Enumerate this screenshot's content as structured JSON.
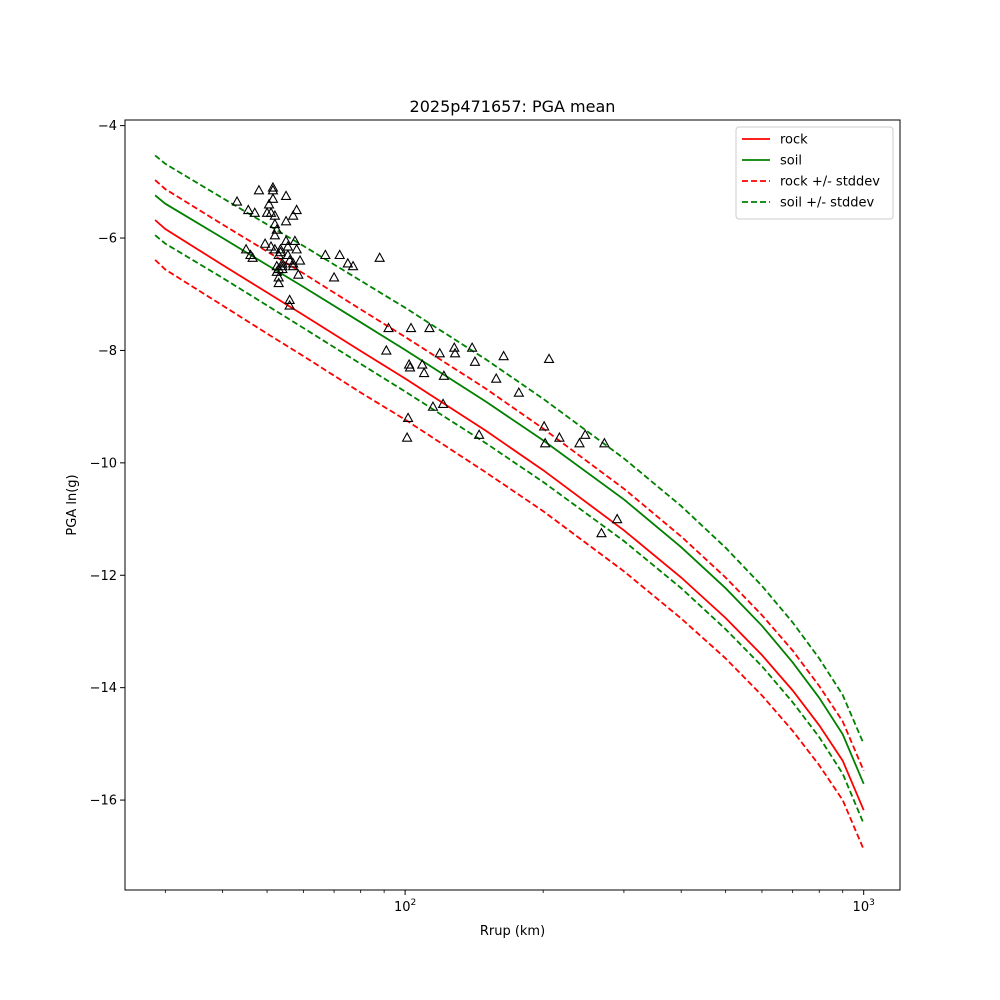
{
  "chart_data": {
    "type": "line",
    "title": "2025p471657: PGA mean",
    "xlabel": "Rrup (km)",
    "ylabel": "PGA ln(g)",
    "x_scale": "log",
    "xlim": [
      24.5,
      1200
    ],
    "ylim": [
      -17.6,
      -3.9
    ],
    "x_ticks": [
      {
        "value": 100,
        "base": "10",
        "exp": "2"
      },
      {
        "value": 1000,
        "base": "10",
        "exp": "3"
      }
    ],
    "x_minor_ticks": [
      30,
      40,
      50,
      60,
      70,
      80,
      90,
      200,
      300,
      400,
      500,
      600,
      700,
      800,
      900
    ],
    "y_ticks": [
      -16,
      -14,
      -12,
      -10,
      -8,
      -6,
      -4
    ],
    "grid": false,
    "legend_position": "top-right",
    "series": [
      {
        "name": "rock",
        "color": "#ff0000",
        "dash": "solid",
        "x": [
          28.5,
          30,
          40,
          50,
          60,
          80,
          100,
          150,
          200,
          300,
          400,
          500,
          600,
          700,
          800,
          900,
          1000
        ],
        "y": [
          -5.68,
          -5.84,
          -6.48,
          -6.97,
          -7.37,
          -8.01,
          -8.5,
          -9.43,
          -10.13,
          -11.2,
          -12.04,
          -12.76,
          -13.42,
          -14.05,
          -14.67,
          -15.3,
          -16.18
        ]
      },
      {
        "name": "soil",
        "color": "#008000",
        "dash": "solid",
        "x": [
          28.5,
          30,
          40,
          50,
          60,
          80,
          100,
          150,
          200,
          300,
          400,
          500,
          600,
          700,
          800,
          900,
          1000
        ],
        "y": [
          -5.24,
          -5.39,
          -6.0,
          -6.48,
          -6.87,
          -7.5,
          -7.99,
          -8.91,
          -9.6,
          -10.65,
          -11.5,
          -12.23,
          -12.9,
          -13.55,
          -14.18,
          -14.83,
          -15.71
        ]
      },
      {
        "name": "rock +/- stddev",
        "color": "#ff0000",
        "dash": "dashed",
        "x": [
          28.5,
          30,
          40,
          50,
          60,
          80,
          100,
          150,
          200,
          300,
          400,
          500,
          600,
          700,
          800,
          900,
          1000
        ],
        "y": [
          -4.97,
          -5.13,
          -5.76,
          -6.24,
          -6.63,
          -7.27,
          -7.76,
          -8.68,
          -9.39,
          -10.46,
          -11.31,
          -12.04,
          -12.71,
          -13.34,
          -13.97,
          -14.6,
          -15.48
        ]
      },
      {
        "name": "rock +/- stddev",
        "color": "#ff0000",
        "dash": "dashed",
        "x": [
          28.5,
          30,
          40,
          50,
          60,
          80,
          100,
          150,
          200,
          300,
          400,
          500,
          600,
          700,
          800,
          900,
          1000
        ],
        "y": [
          -6.39,
          -6.56,
          -7.2,
          -7.7,
          -8.1,
          -8.75,
          -9.23,
          -10.17,
          -10.86,
          -11.93,
          -12.77,
          -13.48,
          -14.14,
          -14.77,
          -15.38,
          -16.0,
          -16.88
        ]
      },
      {
        "name": "soil +/- stddev",
        "color": "#008000",
        "dash": "dashed",
        "x": [
          28.5,
          30,
          40,
          50,
          60,
          80,
          100,
          150,
          200,
          300,
          400,
          500,
          600,
          700,
          800,
          900,
          1000
        ],
        "y": [
          -4.53,
          -4.68,
          -5.29,
          -5.76,
          -6.14,
          -6.76,
          -7.24,
          -8.16,
          -8.86,
          -9.92,
          -10.77,
          -11.51,
          -12.19,
          -12.84,
          -13.48,
          -14.13,
          -15.0
        ]
      },
      {
        "name": "soil +/- stddev",
        "color": "#008000",
        "dash": "dashed",
        "x": [
          28.5,
          30,
          40,
          50,
          60,
          80,
          100,
          150,
          200,
          300,
          400,
          500,
          600,
          700,
          800,
          900,
          1000
        ],
        "y": [
          -5.95,
          -6.1,
          -6.71,
          -7.2,
          -7.6,
          -8.24,
          -8.73,
          -9.65,
          -10.34,
          -11.39,
          -12.23,
          -12.96,
          -13.62,
          -14.26,
          -14.88,
          -15.53,
          -16.42
        ]
      }
    ],
    "legend": [
      {
        "label": "rock",
        "color": "#ff0000",
        "dash": "solid"
      },
      {
        "label": "soil",
        "color": "#008000",
        "dash": "solid"
      },
      {
        "label": "rock +/- stddev",
        "color": "#ff0000",
        "dash": "dashed"
      },
      {
        "label": "soil +/- stddev",
        "color": "#008000",
        "dash": "dashed"
      }
    ],
    "observations": {
      "marker": "triangle",
      "color": "#000000",
      "x": [
        43,
        45,
        45.5,
        46,
        46.5,
        47,
        48,
        49.5,
        50,
        50.5,
        51,
        51,
        51.5,
        51.5,
        51.5,
        52,
        52,
        52,
        52,
        52.5,
        52.5,
        52.5,
        53,
        53,
        53,
        53,
        53.5,
        53.5,
        54,
        54,
        54,
        55,
        55,
        55,
        55.5,
        55.5,
        56,
        56,
        56,
        57,
        57,
        57,
        57.5,
        58,
        58,
        58.5,
        59,
        67,
        70,
        72,
        75,
        77,
        88,
        91,
        92,
        101,
        101.5,
        102,
        102.5,
        103,
        109,
        110,
        113,
        115,
        119,
        121,
        121.5,
        128,
        128.5,
        140,
        142,
        145,
        158,
        164,
        177,
        201,
        202,
        206,
        217,
        240,
        247,
        268,
        272,
        290
      ],
      "y": [
        -5.35,
        -6.2,
        -5.5,
        -6.3,
        -6.35,
        -5.55,
        -5.15,
        -6.1,
        -5.55,
        -5.4,
        -5.55,
        -6.15,
        -5.15,
        -5.1,
        -5.3,
        -5.6,
        -5.75,
        -5.95,
        -6.2,
        -6.5,
        -6.6,
        -5.85,
        -6.55,
        -6.3,
        -6.7,
        -6.8,
        -6.25,
        -6.2,
        -6.45,
        -6.5,
        -6.55,
        -5.25,
        -5.7,
        -6.05,
        -6.15,
        -6.3,
        -7.1,
        -7.2,
        -6.4,
        -5.6,
        -6.45,
        -6.5,
        -6.05,
        -5.5,
        -6.2,
        -6.65,
        -6.4,
        -6.3,
        -6.7,
        -6.3,
        -6.45,
        -6.5,
        -6.35,
        -8.0,
        -7.6,
        -9.55,
        -9.2,
        -8.25,
        -8.3,
        -7.6,
        -8.25,
        -8.4,
        -7.6,
        -9.0,
        -8.05,
        -8.95,
        -8.45,
        -7.95,
        -8.05,
        -7.95,
        -8.2,
        -9.5,
        -8.5,
        -8.1,
        -8.75,
        -9.35,
        -9.65,
        -8.15,
        -9.55,
        -9.65,
        -9.5,
        -11.25,
        -9.65,
        -11.0
      ]
    }
  }
}
